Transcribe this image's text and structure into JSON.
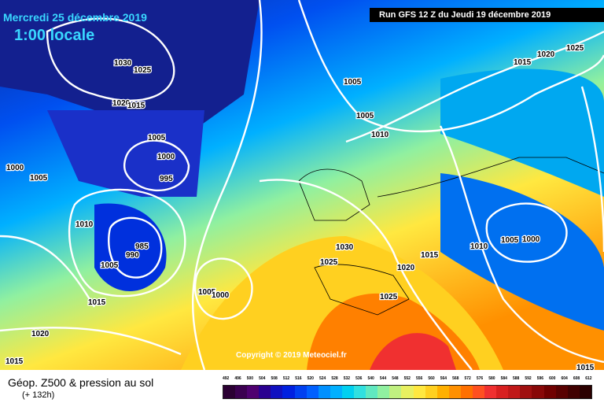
{
  "header": {
    "date": "Mercredi 25 décembre 2019",
    "time": "1:00 locale",
    "run": "Run GFS 12 Z du Jeudi 19 décembre 2019"
  },
  "copyright": "Copyright © 2019 Meteociel.fr",
  "legend": {
    "title": "Géop. Z500 & pression au sol",
    "subtitle": "(+ 132h)",
    "scale_values": [
      "492",
      "496",
      "500",
      "504",
      "508",
      "512",
      "516",
      "520",
      "524",
      "528",
      "532",
      "536",
      "540",
      "544",
      "548",
      "552",
      "556",
      "560",
      "564",
      "568",
      "572",
      "576",
      "580",
      "584",
      "588",
      "592",
      "596",
      "600",
      "604",
      "608",
      "612"
    ],
    "scale_colors": [
      "#2b0033",
      "#3b0050",
      "#4f0070",
      "#2a0090",
      "#1010c0",
      "#0020e0",
      "#0040f0",
      "#0060ff",
      "#0090ff",
      "#00b0ff",
      "#00d0f0",
      "#30e0e0",
      "#60e8c0",
      "#90f0a0",
      "#c0f080",
      "#e8f060",
      "#ffe840",
      "#ffd020",
      "#ffb000",
      "#ff9000",
      "#ff7000",
      "#ff5020",
      "#f03030",
      "#d82020",
      "#c01818",
      "#a01010",
      "#880808",
      "#700000",
      "#580000",
      "#400000",
      "#2b0000"
    ]
  },
  "isobars": [
    "1030",
    "1025",
    "1020",
    "1015",
    "1005",
    "1000",
    "995",
    "1000",
    "1005",
    "1010",
    "985",
    "990",
    "1005",
    "1005",
    "1000",
    "1015",
    "1020",
    "1015",
    "1030",
    "1025",
    "1020",
    "1015",
    "1010",
    "1005",
    "1000",
    "1025",
    "1025",
    "1020",
    "1015",
    "1010",
    "1005",
    "1005",
    "1015"
  ]
}
